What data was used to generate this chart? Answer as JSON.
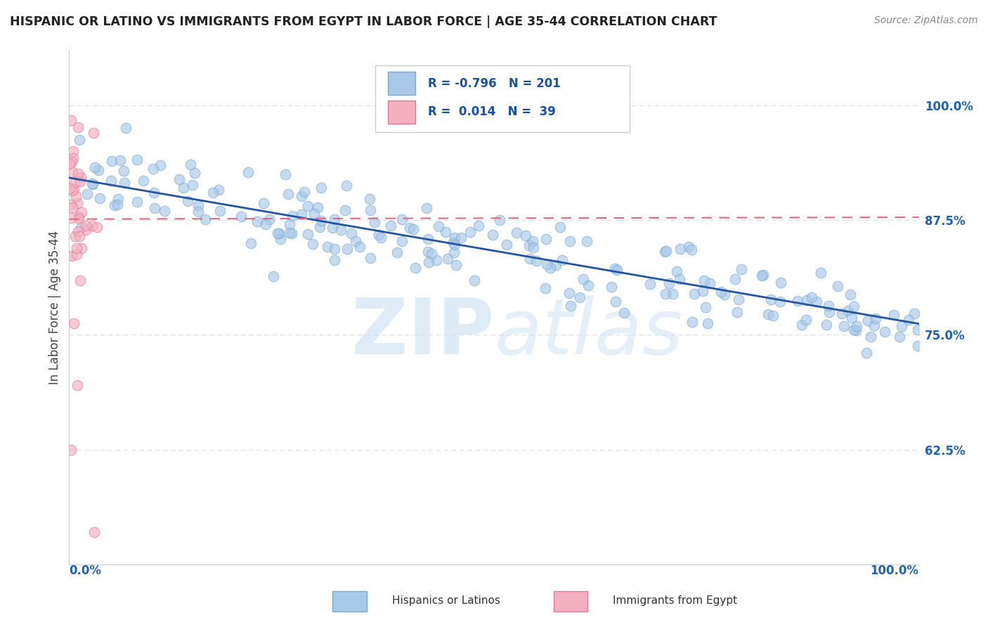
{
  "title": "HISPANIC OR LATINO VS IMMIGRANTS FROM EGYPT IN LABOR FORCE | AGE 35-44 CORRELATION CHART",
  "source": "Source: ZipAtlas.com",
  "ylabel": "In Labor Force | Age 35-44",
  "ytick_labels": [
    "62.5%",
    "75.0%",
    "87.5%",
    "100.0%"
  ],
  "ytick_values": [
    0.625,
    0.75,
    0.875,
    1.0
  ],
  "xlim": [
    0.0,
    1.0
  ],
  "ylim": [
    0.5,
    1.06
  ],
  "blue_R": -0.796,
  "blue_N": 201,
  "pink_R": 0.014,
  "pink_N": 39,
  "blue_color": "#a8c8e8",
  "blue_edge": "#7aaad0",
  "pink_color": "#f4b0c0",
  "pink_edge": "#e07898",
  "blue_line_color": "#2255a0",
  "pink_line_color": "#e06880",
  "legend_label_blue": "Hispanics or Latinos",
  "legend_label_pink": "Immigrants from Egypt",
  "watermark_zip": "ZIP",
  "watermark_atlas": "atlas",
  "background_color": "#ffffff",
  "grid_color": "#dddddd",
  "title_color": "#222222",
  "blue_trendline_start_y": 0.921,
  "blue_trendline_end_y": 0.762,
  "pink_trendline_start_y": 0.876,
  "pink_trendline_end_y": 0.878
}
